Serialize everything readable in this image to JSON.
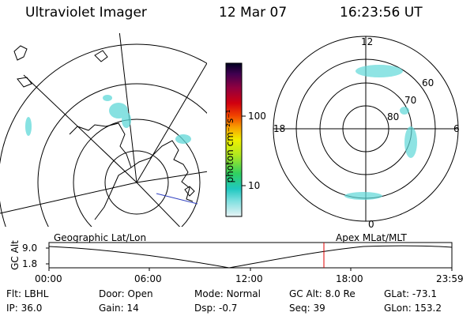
{
  "header": {
    "instrument": "Ultraviolet Imager",
    "date": "12 Mar 07",
    "time": "16:23:56 UT"
  },
  "colorbar": {
    "label": "photon cm⁻²s⁻¹",
    "ticks": [
      "100",
      "10"
    ]
  },
  "polar_plot": {
    "mlt_labels": [
      "12",
      "18",
      "6",
      "0"
    ],
    "lat_labels": [
      "60",
      "70",
      "80"
    ]
  },
  "timeline": {
    "left_title": "Geographic Lat/Lon",
    "right_title": "Apex MLat/MLT",
    "ylabel": "GC Alt",
    "y_ticks": [
      "9.0",
      "1.8"
    ],
    "x_ticks": [
      "00:00",
      "06:00",
      "12:00",
      "18:00",
      "23:59"
    ],
    "marker_color": "#e00000"
  },
  "status": {
    "row1": [
      {
        "key": "Flt:",
        "value": "LBHL"
      },
      {
        "key": "Door:",
        "value": "Open"
      },
      {
        "key": "Mode:",
        "value": "Normal"
      },
      {
        "key": "GC Alt:",
        "value": "8.0 Re"
      },
      {
        "key": "GLat:",
        "value": "-73.1"
      }
    ],
    "row2": [
      {
        "key": "IP:",
        "value": "36.0"
      },
      {
        "key": "Gain:",
        "value": "14"
      },
      {
        "key": "Dsp:",
        "value": "-0.7"
      },
      {
        "key": "Seq:",
        "value": "39"
      },
      {
        "key": "GLon:",
        "value": "153.2"
      }
    ]
  }
}
